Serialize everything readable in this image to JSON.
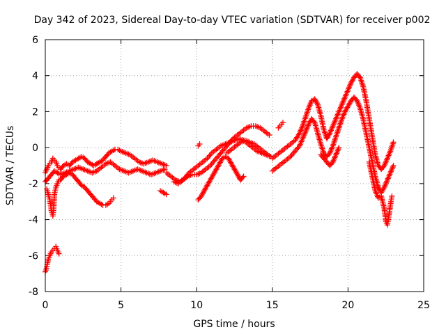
{
  "chart_data": {
    "type": "scatter",
    "title": "Day 342 of 2023, Sidereal Day-to-day VTEC variation (SDTVAR) for receiver p002",
    "xlabel": "GPS time / hours",
    "ylabel": "SDTVAR / TECUs",
    "xlim": [
      0,
      25
    ],
    "ylim": [
      -8,
      6
    ],
    "xticks": [
      0,
      5,
      10,
      15,
      20,
      25
    ],
    "yticks": [
      -8,
      -6,
      -4,
      -2,
      0,
      2,
      4,
      6
    ],
    "grid": true,
    "marker": "+",
    "series": [
      {
        "name": "SDTVAR",
        "color": "#ff0000",
        "segments": [
          {
            "x": [
              0.0,
              0.1,
              0.2,
              0.3,
              0.4,
              0.5,
              0.6,
              0.7,
              0.8,
              0.9,
              1.0,
              1.2,
              1.4,
              1.6,
              1.8,
              2.0,
              2.2,
              2.4,
              2.6,
              2.8,
              3.0,
              3.2,
              3.4,
              3.6,
              3.8,
              4.0,
              4.2,
              4.4,
              4.6,
              4.8,
              5.0,
              5.3,
              5.6,
              5.9,
              6.2,
              6.5,
              6.8,
              7.1,
              7.4,
              7.7,
              8.0
            ],
            "y": [
              -1.4,
              -1.2,
              -1.0,
              -0.9,
              -0.8,
              -0.6,
              -0.7,
              -0.8,
              -1.0,
              -1.1,
              -1.2,
              -1.0,
              -0.9,
              -1.0,
              -0.8,
              -0.7,
              -0.6,
              -0.5,
              -0.6,
              -0.8,
              -0.9,
              -1.0,
              -0.9,
              -0.8,
              -0.7,
              -0.5,
              -0.3,
              -0.2,
              -0.1,
              -0.1,
              -0.2,
              -0.3,
              -0.4,
              -0.6,
              -0.8,
              -0.9,
              -0.8,
              -0.7,
              -0.8,
              -0.9,
              -1.0
            ]
          },
          {
            "x": [
              0.0,
              0.2,
              0.4,
              0.6,
              0.8,
              1.0,
              1.3,
              1.6,
              1.9,
              2.2,
              2.5,
              2.8,
              3.1,
              3.4,
              3.7,
              4.0,
              4.3,
              4.6,
              4.9,
              5.2,
              5.5,
              5.8,
              6.1,
              6.4,
              6.7,
              7.0,
              7.3,
              7.6,
              7.9
            ],
            "y": [
              -1.9,
              -1.7,
              -1.5,
              -1.3,
              -1.4,
              -1.5,
              -1.4,
              -1.3,
              -1.2,
              -1.1,
              -1.2,
              -1.3,
              -1.4,
              -1.3,
              -1.1,
              -0.9,
              -0.8,
              -1.0,
              -1.2,
              -1.3,
              -1.4,
              -1.3,
              -1.2,
              -1.3,
              -1.4,
              -1.5,
              -1.4,
              -1.3,
              -1.2
            ]
          },
          {
            "x": [
              1.0,
              1.2,
              1.4,
              1.6,
              1.8,
              2.0,
              2.2,
              2.4,
              2.6,
              2.8,
              3.0,
              3.2,
              3.4,
              3.6,
              3.8,
              4.0,
              4.2,
              4.3,
              4.4,
              4.5
            ],
            "y": [
              -1.8,
              -1.6,
              -1.5,
              -1.4,
              -1.5,
              -1.7,
              -1.9,
              -2.1,
              -2.2,
              -2.4,
              -2.6,
              -2.8,
              -3.0,
              -3.1,
              -3.2,
              -3.2,
              -3.1,
              -3.0,
              -2.9,
              -2.8
            ]
          },
          {
            "x": [
              0.1,
              0.2,
              0.3,
              0.35,
              0.4,
              0.5,
              0.55,
              0.6,
              0.7,
              0.8,
              0.9
            ],
            "y": [
              -2.3,
              -2.6,
              -2.9,
              -3.2,
              -3.5,
              -3.8,
              -3.4,
              -2.6,
              -2.2,
              -2.0,
              -1.8
            ]
          },
          {
            "x": [
              0.0,
              0.05,
              0.1,
              0.15,
              0.2,
              0.25,
              0.3,
              0.35,
              0.4,
              0.5,
              0.6,
              0.7,
              0.8,
              0.9
            ],
            "y": [
              -6.9,
              -6.8,
              -6.6,
              -6.4,
              -6.2,
              -6.1,
              -6.0,
              -5.9,
              -5.8,
              -5.7,
              -5.6,
              -5.5,
              -5.7,
              -5.9
            ]
          },
          {
            "x": [
              7.6,
              7.8,
              8.0
            ],
            "y": [
              -2.4,
              -2.5,
              -2.6
            ]
          },
          {
            "x": [
              8.0,
              8.3,
              8.6,
              8.9,
              9.2,
              9.5,
              9.8,
              10.1,
              10.4,
              10.7,
              11.0,
              11.3,
              11.6,
              11.9,
              12.2,
              12.5,
              12.8,
              13.1,
              13.4,
              13.7,
              14.0,
              14.3,
              14.6,
              14.9
            ],
            "y": [
              -1.4,
              -1.6,
              -1.8,
              -1.9,
              -1.7,
              -1.4,
              -1.2,
              -1.0,
              -0.8,
              -0.6,
              -0.3,
              -0.1,
              0.1,
              0.2,
              0.3,
              0.4,
              0.5,
              0.4,
              0.2,
              0.0,
              -0.2,
              -0.3,
              -0.4,
              -0.5
            ]
          },
          {
            "x": [
              8.5,
              8.8,
              9.1,
              9.4,
              9.7,
              10.0,
              10.3,
              10.6,
              10.9,
              11.2,
              11.5,
              11.8,
              12.1,
              12.4,
              12.7,
              13.0,
              13.3,
              13.6,
              13.9,
              14.2,
              14.5,
              14.8
            ],
            "y": [
              -1.9,
              -2.0,
              -1.8,
              -1.6,
              -1.5,
              -1.5,
              -1.4,
              -1.2,
              -1.0,
              -0.7,
              -0.4,
              -0.1,
              0.2,
              0.5,
              0.7,
              0.9,
              1.1,
              1.2,
              1.2,
              1.1,
              0.9,
              0.7
            ]
          },
          {
            "x": [
              10.1,
              10.3,
              10.5,
              10.7,
              10.9,
              11.1,
              11.3,
              11.5,
              11.7,
              11.9,
              12.1,
              12.3,
              12.5,
              12.7,
              12.9,
              13.1
            ],
            "y": [
              -2.9,
              -2.7,
              -2.4,
              -2.1,
              -1.8,
              -1.5,
              -1.2,
              -0.9,
              -0.6,
              -0.5,
              -0.6,
              -0.9,
              -1.2,
              -1.5,
              -1.8,
              -1.6
            ]
          },
          {
            "x": [
              10.1,
              10.2
            ],
            "y": [
              0.1,
              0.2
            ]
          },
          {
            "x": [
              12.0,
              12.3,
              12.6,
              12.9,
              13.2,
              13.5,
              13.8,
              14.1,
              14.4,
              14.7
            ],
            "y": [
              -0.3,
              -0.1,
              0.1,
              0.3,
              0.4,
              0.3,
              0.2,
              0.0,
              -0.2,
              -0.4
            ]
          },
          {
            "x": [
              15.4,
              15.5,
              15.6,
              15.7
            ],
            "y": [
              1.1,
              1.2,
              1.3,
              1.4
            ]
          },
          {
            "x": [
              15.0,
              15.3,
              15.6,
              15.9,
              16.2,
              16.5,
              16.8,
              17.0,
              17.2,
              17.4,
              17.6,
              17.8,
              18.0,
              18.2,
              18.4,
              18.6,
              18.8,
              19.0,
              19.2,
              19.4,
              19.6,
              19.8,
              20.0,
              20.2,
              20.4,
              20.6,
              20.8,
              21.0,
              21.2,
              21.4,
              21.6,
              21.8,
              22.0,
              22.2,
              22.4,
              22.6,
              22.8,
              23.0
            ],
            "y": [
              -0.6,
              -0.4,
              -0.2,
              0.0,
              0.2,
              0.4,
              0.8,
              1.2,
              1.7,
              2.2,
              2.6,
              2.7,
              2.4,
              1.8,
              1.0,
              0.5,
              0.8,
              1.2,
              1.6,
              2.0,
              2.4,
              2.8,
              3.2,
              3.6,
              3.9,
              4.1,
              3.9,
              3.4,
              2.6,
              1.6,
              0.6,
              -0.4,
              -1.0,
              -1.2,
              -1.0,
              -0.6,
              -0.2,
              0.3
            ]
          },
          {
            "x": [
              15.0,
              15.3,
              15.6,
              15.9,
              16.2,
              16.5,
              16.8,
              17.0,
              17.2,
              17.4,
              17.6,
              17.8,
              18.0,
              18.2,
              18.4,
              18.6,
              18.8,
              19.0,
              19.2,
              19.4,
              19.6,
              19.8,
              20.0,
              20.2,
              20.4,
              20.6,
              20.8,
              21.0,
              21.2,
              21.4,
              21.6,
              21.8,
              22.0,
              22.2,
              22.4,
              22.6,
              22.8,
              23.0
            ],
            "y": [
              -1.3,
              -1.1,
              -0.9,
              -0.7,
              -0.5,
              -0.2,
              0.1,
              0.5,
              0.9,
              1.3,
              1.6,
              1.4,
              0.8,
              0.2,
              -0.3,
              -0.5,
              -0.3,
              0.1,
              0.6,
              1.1,
              1.6,
              2.0,
              2.3,
              2.6,
              2.8,
              2.6,
              2.2,
              1.6,
              0.8,
              0.0,
              -0.8,
              -1.6,
              -2.2,
              -2.5,
              -2.2,
              -1.8,
              -1.4,
              -1.0
            ]
          },
          {
            "x": [
              18.2,
              18.4,
              18.6,
              18.8,
              19.0,
              19.2,
              19.4
            ],
            "y": [
              -0.4,
              -0.6,
              -0.8,
              -1.0,
              -0.8,
              -0.4,
              0.0
            ]
          },
          {
            "x": [
              21.4,
              21.6,
              21.8,
              22.0,
              22.2,
              22.4,
              22.5,
              22.6,
              22.7,
              22.8,
              22.9
            ],
            "y": [
              -0.8,
              -1.6,
              -2.4,
              -2.8,
              -2.7,
              -3.4,
              -4.1,
              -4.3,
              -3.8,
              -3.2,
              -2.7
            ]
          }
        ]
      }
    ]
  }
}
